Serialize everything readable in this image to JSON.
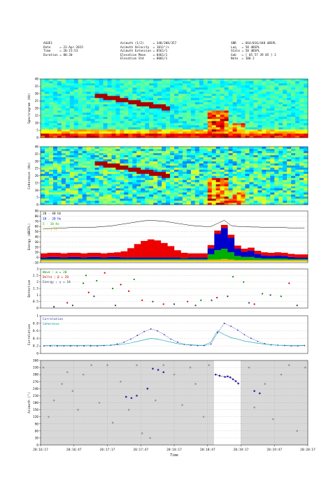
{
  "header": {
    "col1": [
      {
        "label": "AGUE1",
        "value": ""
      },
      {
        "label": "Date",
        "value": "23-Apr-2015"
      },
      {
        "label": "Time",
        "value": "20:15:53"
      },
      {
        "label": "Duration",
        "value": "00:30"
      }
    ],
    "col2": [
      {
        "label": "Azimuth (1/2)",
        "value": "348/288/357"
      },
      {
        "label": "Azimuth Velocity",
        "value": "1011°/s"
      },
      {
        "label": "Azimuth Extension",
        "value": "0561/1"
      },
      {
        "label": "Elevation Mean",
        "value": "0461/1"
      },
      {
        "label": "Elevation Std",
        "value": "0001/1"
      }
    ],
    "col3": [
      {
        "label": "SNR",
        "value": "664/016/448 dBSPL"
      },
      {
        "label": "Leq",
        "value": "58 dBSPL"
      },
      {
        "label": "SCale",
        "value": "58 dBSPL"
      },
      {
        "label": "Gab",
        "value": "[ 05 57 39 05 ] 2"
      },
      {
        "label": "Note",
        "value": "100 2"
      }
    ]
  },
  "chart_data": [
    {
      "type": "heatmap",
      "ylabel": "Spectrogram (Hz)",
      "ylim": [
        0,
        40
      ],
      "yticks": [
        "0",
        "5",
        "10",
        "15",
        "20",
        "25",
        "30",
        "35",
        "40"
      ],
      "grid": true
    },
    {
      "type": "heatmap",
      "ylabel": "Coherence (Hz)",
      "ylim": [
        0,
        40
      ],
      "yticks": [
        "0",
        "5",
        "10",
        "15",
        "20",
        "25",
        "30",
        "35",
        "40"
      ],
      "grid": true
    },
    {
      "type": "area",
      "ylabel": "Energy (dBSPL)",
      "ylim": [
        -10,
        90
      ],
      "yticks": [
        "-10",
        "0",
        "10",
        "20",
        "30",
        "40",
        "50",
        "60",
        "70",
        "80",
        "90"
      ],
      "grid": true,
      "legend": "top-left",
      "series": [
        {
          "name": "20 - 40 Hz",
          "color": "#000000",
          "values": [
            56,
            56,
            57,
            57,
            58,
            58,
            58,
            58,
            59,
            60,
            61,
            63,
            65,
            67,
            69,
            71,
            72,
            71,
            70,
            68,
            66,
            64,
            62,
            61,
            60,
            60,
            66,
            72,
            62,
            60,
            60,
            59,
            59,
            58,
            58,
            58,
            58,
            57,
            57,
            57
          ]
        },
        {
          "name": "10 - 20 Hz",
          "color": "#0000cc",
          "values": [
            3,
            4,
            4,
            3,
            4,
            4,
            3,
            4,
            4,
            3,
            4,
            4,
            3,
            3,
            3,
            3,
            3,
            3,
            3,
            3,
            3,
            2,
            3,
            3,
            3,
            12,
            32,
            40,
            28,
            14,
            10,
            12,
            8,
            6,
            5,
            6,
            5,
            4,
            3,
            3
          ]
        },
        {
          "name": "5 - 10 Hz",
          "color": "#00b000",
          "values": [
            2,
            2,
            2,
            2,
            2,
            2,
            2,
            2,
            2,
            2,
            2,
            2,
            2,
            2,
            2,
            2,
            2,
            2,
            2,
            2,
            2,
            2,
            2,
            2,
            2,
            10,
            18,
            20,
            14,
            8,
            6,
            6,
            4,
            3,
            3,
            3,
            3,
            2,
            2,
            2
          ]
        },
        {
          "name": "0 - 5 Hz",
          "color": "#e8c000",
          "values": [
            3,
            3,
            3,
            3,
            3,
            3,
            3,
            3,
            3,
            3,
            3,
            3,
            3,
            3,
            3,
            3,
            3,
            3,
            3,
            3,
            3,
            3,
            3,
            3,
            3,
            4,
            4,
            5,
            4,
            3,
            3,
            3,
            3,
            3,
            3,
            3,
            3,
            3,
            3,
            3
          ]
        }
      ],
      "red_band": {
        "color": "#ee0000",
        "values": [
          8,
          8,
          8,
          8,
          8,
          8,
          8,
          8,
          8,
          8,
          8,
          9,
          12,
          18,
          26,
          32,
          35,
          33,
          28,
          22,
          14,
          10,
          8,
          8,
          8,
          6,
          6,
          6,
          6,
          6,
          6,
          6,
          6,
          6,
          6,
          6,
          6,
          6,
          6,
          6
        ]
      }
    },
    {
      "type": "scatter",
      "ylabel": "Detection",
      "ylim": [
        0,
        3
      ],
      "yticks": [
        "0",
        "0.5",
        "1",
        "1.5",
        "2",
        "2.5",
        "3"
      ],
      "grid": true,
      "legend": "top-left",
      "series": [
        {
          "name": "Wave : α = 20",
          "color": "#008800",
          "points": [
            [
              0.16,
              1.9
            ],
            [
              0.17,
              2.5
            ],
            [
              0.21,
              2.1
            ],
            [
              0.27,
              1.5
            ],
            [
              0.35,
              2.2
            ],
            [
              0.6,
              0.6
            ],
            [
              0.72,
              2.4
            ],
            [
              0.76,
              2.0
            ],
            [
              0.83,
              1.1
            ],
            [
              0.9,
              0.9
            ]
          ]
        },
        {
          "name": "Delta ; β = 20",
          "color": "#cc0000",
          "points": [
            [
              0.1,
              0.4
            ],
            [
              0.18,
              1.2
            ],
            [
              0.24,
              2.7
            ],
            [
              0.3,
              1.8
            ],
            [
              0.33,
              1.3
            ],
            [
              0.38,
              0.6
            ],
            [
              0.46,
              0.3
            ],
            [
              0.55,
              0.5
            ],
            [
              0.66,
              0.8
            ],
            [
              0.8,
              0.3
            ],
            [
              0.93,
              1.9
            ]
          ]
        },
        {
          "name": "Energy ; γ = 10",
          "color": "#333366",
          "points": [
            [
              0.05,
              0.1
            ],
            [
              0.12,
              0.2
            ],
            [
              0.2,
              0.9
            ],
            [
              0.28,
              0.2
            ],
            [
              0.42,
              0.5
            ],
            [
              0.5,
              0.3
            ],
            [
              0.58,
              0.2
            ],
            [
              0.64,
              0.6
            ],
            [
              0.7,
              0.9
            ],
            [
              0.78,
              0.4
            ],
            [
              0.86,
              1.0
            ],
            [
              0.96,
              0.2
            ]
          ]
        }
      ]
    },
    {
      "type": "line",
      "ylabel": "Correlation",
      "ylim": [
        0,
        1
      ],
      "yticks": [
        "0",
        "0.2",
        "0.4",
        "0.6",
        "0.8",
        "1"
      ],
      "grid": true,
      "legend": "top-left",
      "series": [
        {
          "name": "Correlation",
          "color": "#3333aa",
          "values": [
            0.2,
            0.2,
            0.2,
            0.2,
            0.2,
            0.2,
            0.2,
            0.2,
            0.2,
            0.21,
            0.22,
            0.25,
            0.3,
            0.38,
            0.48,
            0.58,
            0.65,
            0.6,
            0.5,
            0.38,
            0.3,
            0.24,
            0.22,
            0.21,
            0.21,
            0.25,
            0.55,
            0.8,
            0.72,
            0.62,
            0.5,
            0.4,
            0.32,
            0.26,
            0.23,
            0.22,
            0.21,
            0.2,
            0.2,
            0.21
          ]
        },
        {
          "name": "Coherence",
          "color": "#0099aa",
          "values": [
            0.21,
            0.22,
            0.22,
            0.21,
            0.22,
            0.21,
            0.22,
            0.22,
            0.21,
            0.22,
            0.22,
            0.23,
            0.25,
            0.28,
            0.32,
            0.36,
            0.4,
            0.38,
            0.34,
            0.3,
            0.26,
            0.24,
            0.23,
            0.22,
            0.22,
            0.3,
            0.6,
            0.5,
            0.42,
            0.38,
            0.33,
            0.3,
            0.27,
            0.25,
            0.23,
            0.22,
            0.22,
            0.21,
            0.21,
            0.22
          ]
        }
      ]
    },
    {
      "type": "scatter",
      "ylabel": "Azimuth (°) ",
      "xlabel": "Time",
      "ylim": [
        0,
        360
      ],
      "yticks": [
        "0",
        "30",
        "60",
        "90",
        "120",
        "150",
        "180",
        "210",
        "240",
        "270",
        "300",
        "330",
        "360"
      ],
      "xticks": [
        "20:16:17",
        "20:16:47",
        "20:17:17",
        "20:17:47",
        "20:18:17",
        "20:18:47",
        "20:19:17",
        "20:19:47",
        "20:20:17"
      ],
      "grid": true,
      "highlight_window": [
        0.649,
        0.749
      ],
      "series": [
        {
          "name": "",
          "color": "#999999",
          "points": [
            [
              0.01,
              330
            ],
            [
              0.03,
              120
            ],
            [
              0.05,
              190
            ],
            [
              0.08,
              260
            ],
            [
              0.1,
              310
            ],
            [
              0.12,
              230
            ],
            [
              0.14,
              150
            ],
            [
              0.16,
              300
            ],
            [
              0.19,
              340
            ],
            [
              0.22,
              180
            ],
            [
              0.25,
              340
            ],
            [
              0.27,
              95
            ],
            [
              0.3,
              270
            ],
            [
              0.33,
              150
            ],
            [
              0.36,
              340
            ],
            [
              0.38,
              50
            ],
            [
              0.41,
              30
            ],
            [
              0.43,
              190
            ],
            [
              0.46,
              340
            ],
            [
              0.5,
              300
            ],
            [
              0.53,
              170
            ],
            [
              0.56,
              330
            ],
            [
              0.58,
              260
            ],
            [
              0.61,
              120
            ],
            [
              0.63,
              340
            ],
            [
              0.78,
              330
            ],
            [
              0.8,
              160
            ],
            [
              0.84,
              260
            ],
            [
              0.87,
              110
            ],
            [
              0.9,
              300
            ],
            [
              0.93,
              340
            ],
            [
              0.96,
              60
            ],
            [
              0.99,
              330
            ]
          ]
        },
        {
          "name": "",
          "color": "#3322aa",
          "points": [
            [
              0.32,
              205
            ],
            [
              0.34,
              200
            ],
            [
              0.36,
              210
            ],
            [
              0.4,
              240
            ],
            [
              0.42,
              325
            ],
            [
              0.44,
              320
            ],
            [
              0.46,
              310
            ],
            [
              0.655,
              300
            ],
            [
              0.67,
              295
            ],
            [
              0.69,
              290
            ],
            [
              0.7,
              292
            ],
            [
              0.71,
              288
            ],
            [
              0.72,
              280
            ],
            [
              0.73,
              272
            ],
            [
              0.74,
              262
            ],
            [
              0.8,
              230
            ],
            [
              0.82,
              220
            ]
          ]
        }
      ]
    }
  ]
}
